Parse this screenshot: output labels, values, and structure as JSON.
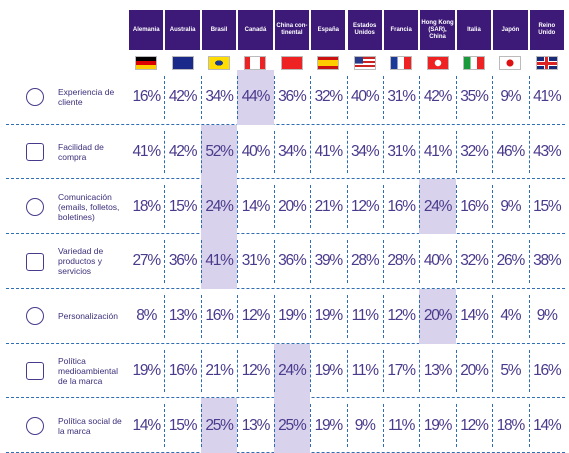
{
  "table": {
    "columns": [
      "Alemania",
      "Australia",
      "Brasil",
      "Canadá",
      "China con-\ntinental",
      "España",
      "Estados Unidos",
      "Francia",
      "Hong Kong (SAR), China",
      "Italia",
      "Japón",
      "Reino Unido"
    ],
    "row_labels": [
      "Experiencia de cliente",
      "Facilidad de compra",
      "Comunicación (emails, folletos, boletines)",
      "Variedad de productos y servicios",
      "Personalización",
      "Política medioambiental de la marca",
      "Política social de la marca"
    ],
    "rows": [
      [
        "16%",
        "42%",
        "34%",
        "44%",
        "36%",
        "32%",
        "40%",
        "31%",
        "42%",
        "35%",
        "9%",
        "41%"
      ],
      [
        "41%",
        "42%",
        "52%",
        "40%",
        "34%",
        "41%",
        "34%",
        "31%",
        "41%",
        "32%",
        "46%",
        "43%"
      ],
      [
        "18%",
        "15%",
        "24%",
        "14%",
        "20%",
        "21%",
        "12%",
        "16%",
        "24%",
        "16%",
        "9%",
        "15%"
      ],
      [
        "27%",
        "36%",
        "41%",
        "31%",
        "36%",
        "39%",
        "28%",
        "28%",
        "40%",
        "32%",
        "26%",
        "38%"
      ],
      [
        "8%",
        "13%",
        "16%",
        "12%",
        "19%",
        "19%",
        "11%",
        "12%",
        "20%",
        "14%",
        "4%",
        "9%"
      ],
      [
        "19%",
        "16%",
        "21%",
        "12%",
        "24%",
        "19%",
        "11%",
        "17%",
        "13%",
        "20%",
        "5%",
        "16%"
      ],
      [
        "14%",
        "15%",
        "25%",
        "13%",
        "25%",
        "19%",
        "9%",
        "11%",
        "19%",
        "12%",
        "18%",
        "14%"
      ]
    ],
    "highlighted": [
      [
        0,
        3
      ],
      [
        1,
        2
      ],
      [
        2,
        2
      ],
      [
        2,
        8
      ],
      [
        3,
        2
      ],
      [
        4,
        8
      ],
      [
        5,
        4
      ],
      [
        6,
        2
      ],
      [
        6,
        4
      ]
    ]
  }
}
